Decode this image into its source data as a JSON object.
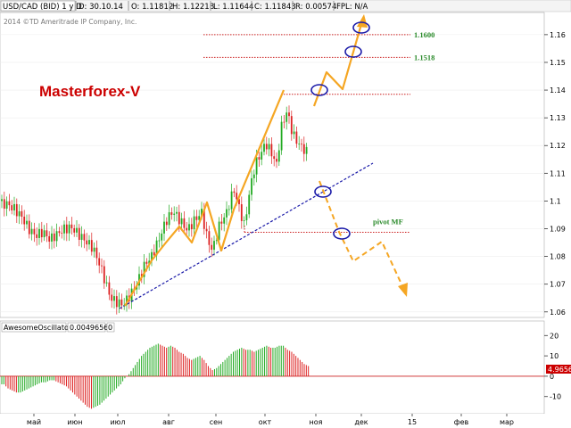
{
  "header": {
    "symbol": "USD/CAD (BID) 1 y D",
    "date": "D: 30.10.14",
    "open": "O: 1.11812",
    "high": "H: 1.12218",
    "low": "L: 1.11644",
    "close": "C: 1.11843",
    "range": "R: 0.00574",
    "fpl": "FPL: N/A"
  },
  "copyright": "2014 ©TD Ameritrade IP Company, Inc.",
  "watermark": "Masterforex-V",
  "colors": {
    "watermark": "#cc0000",
    "arrow": "#f5a623",
    "trendline": "#1a1aa8",
    "level_line": "#cc2222",
    "level_text": "#2a8a2a",
    "candle_up": "#22aa22",
    "candle_down": "#dd2222",
    "ellipse": "#1a1aa8",
    "osc_up": "#22aa22",
    "osc_down": "#dd2222",
    "price_badge": "#cc0000"
  },
  "chart_data": [
    {
      "type": "candlestick",
      "title": "USD/CAD (BID) 1 y D",
      "x_tick_labels": [
        "май",
        "июн",
        "июл",
        "авг",
        "сен",
        "окт",
        "ноя",
        "дек",
        "15",
        "фев",
        "мар"
      ],
      "y_ticks": [
        "1.16",
        "1.15",
        "1.14",
        "1.13",
        "1.12",
        "1.11",
        "1.1",
        "1.09",
        "1.08",
        "1.07",
        "1.06"
      ],
      "ylim": [
        1.058,
        1.168
      ],
      "price_path": [
        [
          0,
          1.1
        ],
        [
          8,
          1.1
        ],
        [
          16,
          1.098
        ],
        [
          24,
          1.095
        ],
        [
          32,
          1.09
        ],
        [
          40,
          1.087
        ],
        [
          48,
          1.088
        ],
        [
          56,
          1.085
        ],
        [
          64,
          1.087
        ],
        [
          72,
          1.089
        ],
        [
          80,
          1.09
        ],
        [
          88,
          1.088
        ],
        [
          96,
          1.086
        ],
        [
          104,
          1.084
        ],
        [
          112,
          1.078
        ],
        [
          118,
          1.072
        ],
        [
          124,
          1.066
        ],
        [
          132,
          1.064
        ],
        [
          138,
          1.063
        ],
        [
          146,
          1.066
        ],
        [
          154,
          1.07
        ],
        [
          162,
          1.076
        ],
        [
          170,
          1.079
        ],
        [
          178,
          1.085
        ],
        [
          186,
          1.092
        ],
        [
          194,
          1.096
        ],
        [
          202,
          1.093
        ],
        [
          210,
          1.09
        ],
        [
          218,
          1.094
        ],
        [
          226,
          1.097
        ],
        [
          232,
          1.088
        ],
        [
          238,
          1.083
        ],
        [
          246,
          1.092
        ],
        [
          254,
          1.096
        ],
        [
          262,
          1.104
        ],
        [
          268,
          1.097
        ],
        [
          274,
          1.09
        ],
        [
          280,
          1.103
        ],
        [
          286,
          1.112
        ],
        [
          292,
          1.116
        ],
        [
          298,
          1.12
        ],
        [
          304,
          1.117
        ],
        [
          310,
          1.113
        ],
        [
          316,
          1.128
        ],
        [
          322,
          1.133
        ],
        [
          328,
          1.125
        ],
        [
          334,
          1.122
        ],
        [
          340,
          1.12
        ],
        [
          346,
          1.118
        ]
      ],
      "levels": [
        {
          "label": "1.1600",
          "value": 1.16
        },
        {
          "label": "1.1518",
          "value": 1.1518
        },
        {
          "label": "",
          "value": 1.1385
        },
        {
          "label": "pivot MF",
          "value": 1.0887
        }
      ],
      "annotations": [
        "Masterforex-V",
        "1.1600",
        "1.1518",
        "pivot MF"
      ],
      "price_badge": "4.9656"
    },
    {
      "type": "bar",
      "title": "AwesomeOscillator",
      "value_label": "0.0049656",
      "zero_label": "0",
      "y_ticks": [
        "20",
        "10",
        "0",
        "-10"
      ],
      "ylim": [
        -18,
        21
      ],
      "series": [
        {
          "values": [
            -4,
            -6,
            -7,
            -8,
            -8,
            -7,
            -6,
            -5,
            -4,
            -3,
            -3,
            -2,
            -2,
            -3,
            -4,
            -5,
            -7,
            -9,
            -11,
            -13,
            -15,
            -16,
            -15,
            -14,
            -12,
            -10,
            -8,
            -6,
            -4,
            -1,
            1,
            4,
            7,
            10,
            12,
            14,
            15,
            16,
            15,
            14,
            15,
            14,
            12,
            11,
            9,
            8,
            9,
            10,
            8,
            5,
            3,
            4,
            6,
            8,
            10,
            12,
            13,
            14,
            13,
            13,
            12,
            13,
            14,
            15,
            14,
            14,
            15,
            15,
            13,
            12,
            10,
            8,
            6,
            5
          ]
        }
      ]
    }
  ]
}
